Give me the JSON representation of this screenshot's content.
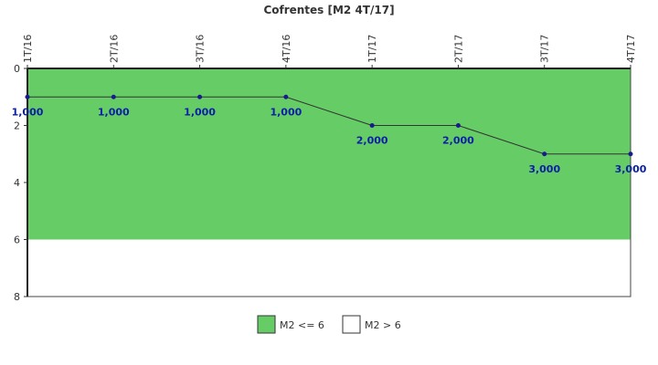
{
  "chart_data": {
    "type": "line",
    "title": "Cofrentes [M2 4T/17]",
    "categories": [
      "1T/16",
      "2T/16",
      "3T/16",
      "4T/16",
      "1T/17",
      "2T/17",
      "3T/17",
      "4T/17"
    ],
    "series": [
      {
        "values": [
          1,
          1,
          1,
          1,
          2,
          2,
          3,
          3
        ],
        "labels": [
          "1,000",
          "1,000",
          "1,000",
          "1,000",
          "2,000",
          "2,000",
          "3,000",
          "3,000"
        ]
      }
    ],
    "y_axis": {
      "min": 0,
      "max": 8,
      "reversed": true,
      "ticks": [
        "0",
        "2",
        "4",
        "6",
        "8"
      ]
    },
    "x_axis_position": "top",
    "bands": [
      {
        "name": "M2 <= 6",
        "from": 0,
        "to": 6,
        "color": "#66cc66"
      },
      {
        "name": "M2 > 6",
        "from": 6,
        "to": 8,
        "color": "#ffffff"
      }
    ],
    "legend_position": "bottom",
    "colors": {
      "line": "#333333",
      "marker": "#1a1a8c",
      "data_label": "#0a1ea8"
    }
  }
}
